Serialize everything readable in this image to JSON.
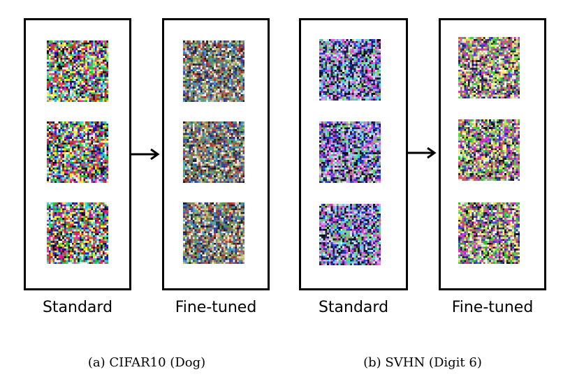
{
  "figure": {
    "subfigures": [
      {
        "caption": "(a)  CIFAR10 (Dog)",
        "groups": [
          {
            "label": "Standard",
            "tiles": 3,
            "seed": 11,
            "palette": "cifar-standard"
          },
          {
            "label": "Fine-tuned",
            "tiles": 3,
            "seed": 27,
            "palette": "cifar-finetuned"
          }
        ]
      },
      {
        "caption": "(b)  SVHN (Digit 6)",
        "groups": [
          {
            "label": "Standard",
            "tiles": 3,
            "seed": 53,
            "palette": "svhn-standard"
          },
          {
            "label": "Fine-tuned",
            "tiles": 3,
            "seed": 71,
            "palette": "svhn-finetuned"
          }
        ]
      }
    ],
    "arrow_color": "#000000",
    "border_color": "#000000"
  }
}
